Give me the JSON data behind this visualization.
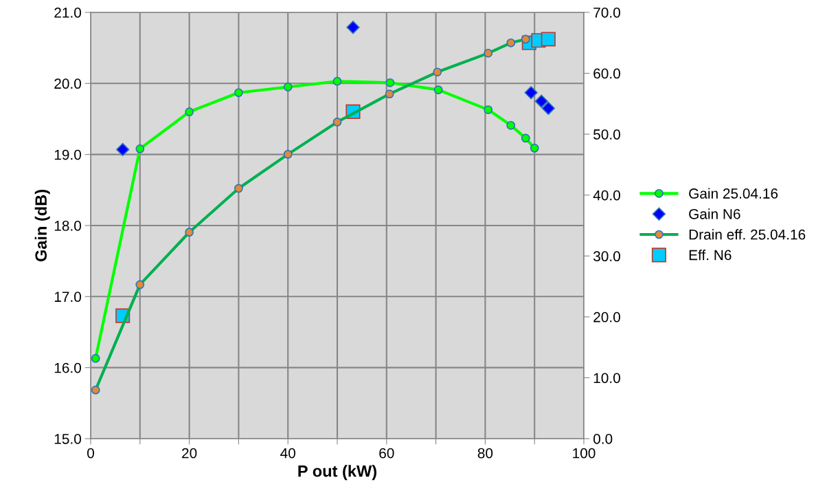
{
  "chart_data": {
    "type": "line",
    "xlabel": "P out (kW)",
    "ylabel": "Gain (dB)",
    "xlim": [
      0,
      100
    ],
    "xticks": [
      0,
      {
        "value": 10,
        "label": null
      },
      20,
      {
        "value": 30,
        "label": null
      },
      40,
      {
        "value": 50,
        "label": null
      },
      60,
      {
        "value": 70,
        "label": null
      },
      80,
      {
        "value": 90,
        "label": null
      },
      100
    ],
    "ylim": [
      15,
      21
    ],
    "yticks": [
      {
        "value": 15,
        "label": "15.0"
      },
      {
        "value": 16,
        "label": "16.0"
      },
      {
        "value": 17,
        "label": "17.0"
      },
      {
        "value": 18,
        "label": "18.0"
      },
      {
        "value": 19,
        "label": "19.0"
      },
      {
        "value": 20,
        "label": "20.0"
      },
      {
        "value": 21,
        "label": "21.0"
      }
    ],
    "y2lim": [
      0,
      70
    ],
    "y2ticks": [
      {
        "value": 0,
        "label": "0.0"
      },
      {
        "value": 10,
        "label": "10.0"
      },
      {
        "value": 20,
        "label": "20.0"
      },
      {
        "value": 30,
        "label": "30.0"
      },
      {
        "value": 40,
        "label": "40.0"
      },
      {
        "value": 50,
        "label": "50.0"
      },
      {
        "value": 60,
        "label": "60.0"
      },
      {
        "value": 70,
        "label": "70.0"
      }
    ],
    "grid": true,
    "legend": "right",
    "series": [
      {
        "name": "Gain 25.04.16",
        "marker": "circle",
        "color": "#00ff00",
        "x": [
          1,
          10,
          20,
          30,
          40,
          50,
          60.7,
          70.5,
          80.6,
          85.2,
          88.2,
          90
        ],
        "values": [
          16.13,
          19.08,
          19.6,
          19.87,
          19.95,
          20.03,
          20.01,
          19.91,
          19.63,
          19.41,
          19.23,
          19.09
        ]
      },
      {
        "name": "Gain N6",
        "type": "scatter",
        "marker": "diamond",
        "color": "#0000ff",
        "x": [
          6.5,
          53.2,
          89.3,
          91.4,
          92.8
        ],
        "values": [
          19.07,
          20.79,
          19.87,
          19.75,
          19.65
        ]
      },
      {
        "name": "Drain eff. 25.04.16",
        "marker": "circle",
        "axis": "y2",
        "color": "#00b050",
        "x": [
          1,
          10,
          20,
          30,
          40,
          50,
          60.6,
          70.3,
          80.6,
          85.2,
          88.2
        ],
        "values": [
          8.0,
          25.3,
          33.9,
          41.1,
          46.7,
          52.0,
          56.6,
          60.2,
          63.3,
          65.0,
          65.6
        ]
      },
      {
        "name": "Eff. N6",
        "type": "scatter",
        "marker": "square",
        "axis": "y2",
        "color": "#00ccff",
        "x": [
          6.5,
          53.2,
          88.9,
          90.8,
          92.8
        ],
        "values": [
          20.2,
          53.7,
          65.0,
          65.4,
          65.6
        ]
      }
    ]
  }
}
